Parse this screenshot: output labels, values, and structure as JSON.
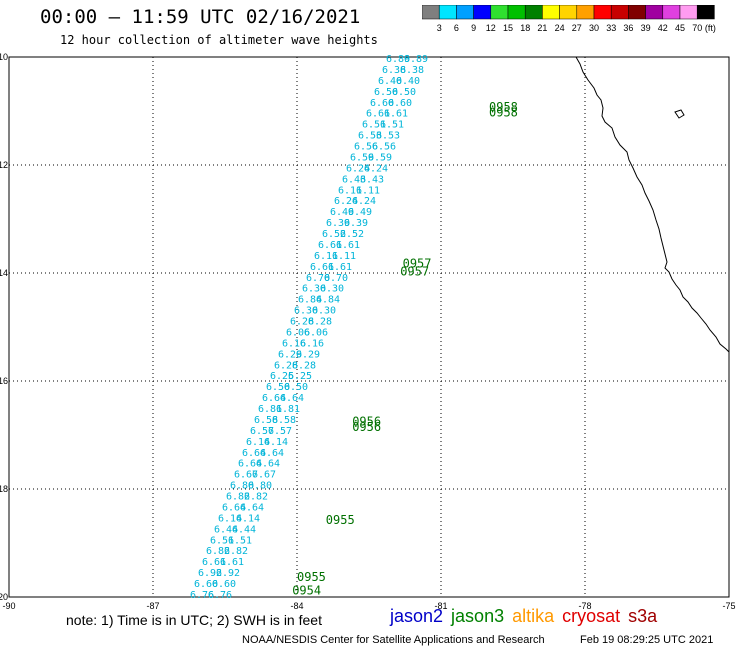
{
  "header": {
    "title": "00:00 – 11:59 UTC 02/16/2021",
    "subtitle": "12 hour collection of altimeter wave heights"
  },
  "colorbar": {
    "unit": "(ft)",
    "ticks": [
      "3",
      "6",
      "9",
      "12",
      "15",
      "18",
      "21",
      "24",
      "27",
      "30",
      "33",
      "36",
      "39",
      "42",
      "45",
      "70"
    ],
    "colors": [
      "#7f7f7f",
      "#00e5ff",
      "#00a0ff",
      "#0000ff",
      "#2fe02f",
      "#00c000",
      "#008000",
      "#ffff00",
      "#ffd400",
      "#ffa000",
      "#ff0000",
      "#c80000",
      "#800000",
      "#a000a0",
      "#e040e0",
      "#ff9cf0",
      "#000000"
    ]
  },
  "map": {
    "lon_range": [
      -90,
      -75
    ],
    "lat_range": [
      -20,
      -10
    ],
    "lon_ticks": [
      "-90",
      "-87",
      "-84",
      "-81",
      "-78",
      "-75"
    ],
    "lat_ticks": [
      "-10",
      "-12",
      "-14",
      "-16",
      "-18",
      "-20"
    ]
  },
  "track_values": [
    "6.76",
    "6.60",
    "6.92",
    "6.61",
    "6.82",
    "6.51",
    "6.44",
    "6.14",
    "6.64",
    "6.82",
    "6.80",
    "6.67",
    "6.64",
    "6.64",
    "6.14",
    "6.57",
    "6.58",
    "6.81",
    "6.64",
    "6.50",
    "6.25",
    "6.28",
    "6.29",
    "6.16",
    "6.06",
    "6.28",
    "6.30",
    "6.84",
    "6.30",
    "6.70",
    "6.61",
    "6.11",
    "6.61",
    "6.52",
    "6.39",
    "6.49",
    "6.24",
    "6.11",
    "6.43",
    "6.24",
    "6.59",
    "6.56",
    "6.53",
    "6.51",
    "6.61",
    "6.60",
    "6.50",
    "6.40",
    "6.38",
    "6.89"
  ],
  "time_labels": [
    {
      "text": "0954",
      "lon": -84.1,
      "lat": -19.95
    },
    {
      "text": "0955",
      "lon": -84.0,
      "lat": -19.7
    },
    {
      "text": "0955",
      "lon": -83.4,
      "lat": -18.65
    },
    {
      "text": "0956",
      "lon": -82.85,
      "lat": -16.82
    },
    {
      "text": "0956",
      "lon": -82.85,
      "lat": -16.93
    },
    {
      "text": "0957",
      "lon": -81.8,
      "lat": -13.9
    },
    {
      "text": "0957",
      "lon": -81.85,
      "lat": -14.05
    },
    {
      "text": "0958",
      "lon": -80.0,
      "lat": -11.0
    },
    {
      "text": "0958",
      "lon": -80.0,
      "lat": -11.1
    }
  ],
  "notes": {
    "note": "note: 1) Time is in UTC; 2) SWH is in feet",
    "credit": "NOAA/NESDIS Center for Satellite Applications and Research",
    "timestamp": "Feb 19 08:29:25 UTC 2021"
  },
  "missions": [
    {
      "name": "jason2",
      "color": "#0000c8"
    },
    {
      "name": "jason3",
      "color": "#008000"
    },
    {
      "name": "altika",
      "color": "#ff9900"
    },
    {
      "name": "cryosat",
      "color": "#e00000"
    },
    {
      "name": "s3a",
      "color": "#a00000"
    }
  ],
  "colors": {
    "track": "#00b4d8",
    "time_label": "#007000"
  }
}
